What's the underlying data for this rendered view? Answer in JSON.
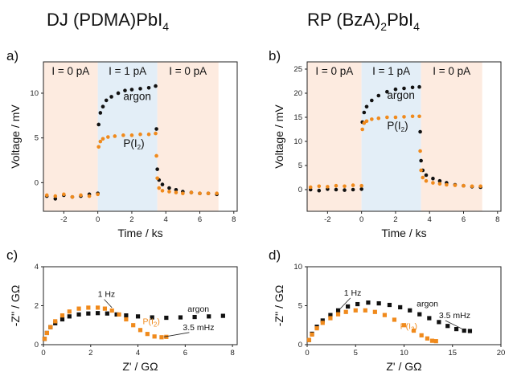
{
  "columns": {
    "left": {
      "prefix": "DJ (PDMA)PbI",
      "sub": "4",
      "suffix": ""
    },
    "right": {
      "prefix": "RP (BzA)",
      "sub": "2",
      "suffix": "PbI",
      "sub2": "4"
    }
  },
  "colors": {
    "argon": "#111111",
    "iodine": "#f08a1c",
    "shade_off": "#fdebe0",
    "shade_on": "#e3eef7"
  },
  "chart_data": [
    {
      "panel": "a)",
      "type": "scatter",
      "xlabel": "Time / ks",
      "ylabel": "Voltage / mV",
      "xlim": [
        -3.2,
        8.2
      ],
      "ylim": [
        -3.2,
        13.5
      ],
      "xticks": [
        -2,
        0,
        2,
        4,
        6,
        8
      ],
      "yticks": [
        0,
        5,
        10
      ],
      "regions": [
        {
          "label": "I = 0 pA",
          "x0": -3.2,
          "x1": 0
        },
        {
          "label": "I = 1 pA",
          "x0": 0,
          "x1": 3.5
        },
        {
          "label": "I = 0 pA",
          "x0": 3.5,
          "x1": 7.1
        }
      ],
      "series": [
        {
          "name": "argon",
          "key": "argon",
          "x": [
            -3.0,
            -2.5,
            -2.0,
            -1.5,
            -1.0,
            -0.5,
            0.0,
            0.05,
            0.15,
            0.3,
            0.5,
            0.8,
            1.2,
            1.6,
            2.0,
            2.5,
            3.0,
            3.4,
            3.45,
            3.5,
            3.6,
            3.8,
            4.2,
            4.6,
            5.0,
            5.5,
            6.0,
            6.5,
            7.0
          ],
          "y": [
            -1.5,
            -1.8,
            -1.4,
            -1.6,
            -1.5,
            -1.3,
            -1.2,
            6.5,
            7.8,
            8.5,
            9.2,
            9.6,
            10.0,
            10.3,
            10.4,
            10.5,
            10.6,
            10.8,
            6.0,
            1.5,
            0.3,
            -0.2,
            -0.6,
            -0.8,
            -1.0,
            -1.1,
            -1.2,
            -1.2,
            -1.3
          ]
        },
        {
          "name": "P(I2)",
          "key": "iodine",
          "label_base": "P(I",
          "label_sub": "2",
          "label_tail": ")",
          "x": [
            -3.0,
            -2.5,
            -2.0,
            -1.5,
            -1.0,
            -0.5,
            0.0,
            0.05,
            0.15,
            0.3,
            0.6,
            1.0,
            1.5,
            2.0,
            2.5,
            3.0,
            3.4,
            3.45,
            3.5,
            3.6,
            3.8,
            4.2,
            4.6,
            5.0,
            5.5,
            6.0,
            6.5,
            7.0
          ],
          "y": [
            -1.4,
            -1.5,
            -1.3,
            -1.6,
            -1.4,
            -1.5,
            -1.3,
            4.0,
            4.6,
            4.9,
            5.1,
            5.2,
            5.3,
            5.3,
            5.4,
            5.4,
            5.5,
            3.0,
            0.5,
            -0.6,
            -0.9,
            -1.0,
            -1.1,
            -1.2,
            -1.1,
            -1.2,
            -1.2,
            -1.2
          ]
        }
      ]
    },
    {
      "panel": "b)",
      "type": "scatter",
      "xlabel": "Time / ks",
      "ylabel": "Voltage / mV",
      "xlim": [
        -3.2,
        8.2
      ],
      "ylim": [
        -4.5,
        26.5
      ],
      "xticks": [
        -2,
        0,
        2,
        4,
        6,
        8
      ],
      "yticks": [
        0,
        5,
        10,
        15,
        20,
        25
      ],
      "regions": [
        {
          "label": "I = 0 pA",
          "x0": -3.2,
          "x1": 0
        },
        {
          "label": "I = 1 pA",
          "x0": 0,
          "x1": 3.5
        },
        {
          "label": "I = 0 pA",
          "x0": 3.5,
          "x1": 7.1
        }
      ],
      "series": [
        {
          "name": "argon",
          "key": "argon",
          "x": [
            -3.0,
            -2.5,
            -2.0,
            -1.5,
            -1.0,
            -0.5,
            0.0,
            0.05,
            0.15,
            0.3,
            0.6,
            1.0,
            1.5,
            2.0,
            2.5,
            3.0,
            3.4,
            3.45,
            3.5,
            3.6,
            3.8,
            4.2,
            4.6,
            5.0,
            5.5,
            6.0,
            6.5,
            7.0
          ],
          "y": [
            0.0,
            -0.2,
            0.1,
            0.0,
            -0.1,
            0.0,
            0.1,
            14.0,
            16.0,
            17.2,
            18.5,
            19.5,
            20.3,
            20.8,
            21.0,
            21.2,
            21.3,
            12.0,
            6.0,
            4.0,
            3.0,
            2.3,
            1.8,
            1.4,
            1.0,
            0.8,
            0.6,
            0.5
          ]
        },
        {
          "name": "P(I2)",
          "key": "iodine",
          "label_base": "P(I",
          "label_sub": "2",
          "label_tail": ")",
          "x": [
            -3.0,
            -2.5,
            -2.0,
            -1.5,
            -1.0,
            -0.5,
            0.0,
            0.05,
            0.15,
            0.3,
            0.6,
            1.0,
            1.5,
            2.0,
            2.5,
            3.0,
            3.4,
            3.45,
            3.5,
            3.6,
            3.8,
            4.2,
            4.6,
            5.0,
            5.5,
            6.0,
            6.5,
            7.0
          ],
          "y": [
            0.5,
            0.7,
            0.6,
            0.8,
            0.7,
            0.9,
            0.8,
            12.5,
            13.8,
            14.2,
            14.6,
            14.8,
            15.0,
            15.0,
            15.1,
            15.2,
            15.2,
            8.0,
            4.0,
            2.5,
            1.8,
            1.4,
            1.2,
            1.0,
            0.9,
            0.8,
            0.7,
            0.7
          ]
        }
      ]
    },
    {
      "panel": "c)",
      "type": "scatter",
      "xlabel": "Z' / GΩ",
      "ylabel": "-Z'' / GΩ",
      "xlim": [
        0,
        8.2
      ],
      "ylim": [
        0,
        4
      ],
      "xticks": [
        0,
        2,
        4,
        6,
        8
      ],
      "yticks": [
        0,
        2,
        4
      ],
      "annotations": [
        {
          "text": "1 Hz",
          "x": 2.3,
          "y": 2.45,
          "px": 2.9,
          "py": 1.9
        },
        {
          "text": "3.5 mHz",
          "x": 5.9,
          "y": 0.75,
          "px": 5.1,
          "py": 0.4
        }
      ],
      "series_labels": [
        {
          "key": "argon",
          "text": "argon",
          "x": 6.1,
          "y": 1.7
        },
        {
          "key": "iodine",
          "text": "P(I2)",
          "base": "P(I",
          "sub": "2",
          "tail": ")",
          "x": 4.2,
          "y": 1.05
        }
      ],
      "series": [
        {
          "name": "argon",
          "key": "argon",
          "x": [
            0.05,
            0.15,
            0.3,
            0.5,
            0.8,
            1.1,
            1.5,
            1.9,
            2.3,
            2.7,
            3.1,
            3.5,
            4.0,
            4.6,
            5.2,
            5.8,
            6.4,
            7.0,
            7.6
          ],
          "y": [
            0.3,
            0.6,
            0.9,
            1.1,
            1.3,
            1.45,
            1.55,
            1.6,
            1.62,
            1.6,
            1.55,
            1.5,
            1.45,
            1.4,
            1.38,
            1.4,
            1.42,
            1.45,
            1.48
          ]
        },
        {
          "name": "P(I2)",
          "key": "iodine",
          "x": [
            0.05,
            0.15,
            0.3,
            0.5,
            0.8,
            1.1,
            1.5,
            1.9,
            2.3,
            2.6,
            2.9,
            3.2,
            3.5,
            3.8,
            4.1,
            4.4,
            4.7,
            5.0,
            5.2
          ],
          "y": [
            0.3,
            0.6,
            0.9,
            1.2,
            1.5,
            1.7,
            1.85,
            1.9,
            1.9,
            1.85,
            1.75,
            1.55,
            1.3,
            1.0,
            0.75,
            0.55,
            0.42,
            0.38,
            0.4
          ]
        }
      ]
    },
    {
      "panel": "d)",
      "type": "scatter",
      "xlabel": "Z' / GΩ",
      "ylabel": "-Z'' / GΩ",
      "xlim": [
        0,
        20
      ],
      "ylim": [
        0,
        10
      ],
      "xticks": [
        0,
        5,
        10,
        15,
        20
      ],
      "yticks": [
        0,
        5,
        10
      ],
      "annotations": [
        {
          "text": "1 Hz",
          "x": 3.8,
          "y": 6.3,
          "px": 3.4,
          "py": 4.6
        },
        {
          "text": "3.5 mHz",
          "x": 13.6,
          "y": 3.4,
          "px": 16.2,
          "py": 1.9
        }
      ],
      "series_labels": [
        {
          "key": "argon",
          "text": "argon",
          "x": 11.3,
          "y": 4.9
        },
        {
          "key": "iodine",
          "text": "P(I2)",
          "base": "P(I",
          "sub": "2",
          "tail": ")",
          "x": 9.6,
          "y": 2.0
        }
      ],
      "series": [
        {
          "name": "argon",
          "key": "argon",
          "x": [
            0.2,
            0.5,
            1.0,
            1.6,
            2.4,
            3.2,
            4.2,
            5.2,
            6.3,
            7.4,
            8.5,
            9.6,
            10.6,
            11.6,
            12.6,
            13.6,
            14.5,
            15.4,
            16.2,
            16.8
          ],
          "y": [
            0.6,
            1.4,
            2.3,
            3.1,
            3.8,
            4.4,
            4.9,
            5.2,
            5.4,
            5.3,
            5.1,
            4.8,
            4.4,
            3.9,
            3.4,
            2.9,
            2.4,
            2.0,
            1.8,
            1.75
          ]
        },
        {
          "name": "P(I2)",
          "key": "iodine",
          "x": [
            0.2,
            0.5,
            1.0,
            1.6,
            2.4,
            3.2,
            4.0,
            5.0,
            6.0,
            7.0,
            8.0,
            9.0,
            10.0,
            11.0,
            11.8,
            12.4,
            12.9,
            13.3
          ],
          "y": [
            0.6,
            1.3,
            2.1,
            2.8,
            3.4,
            3.9,
            4.2,
            4.4,
            4.4,
            4.2,
            3.8,
            3.2,
            2.5,
            1.8,
            1.2,
            0.8,
            0.5,
            0.45
          ]
        }
      ]
    }
  ]
}
